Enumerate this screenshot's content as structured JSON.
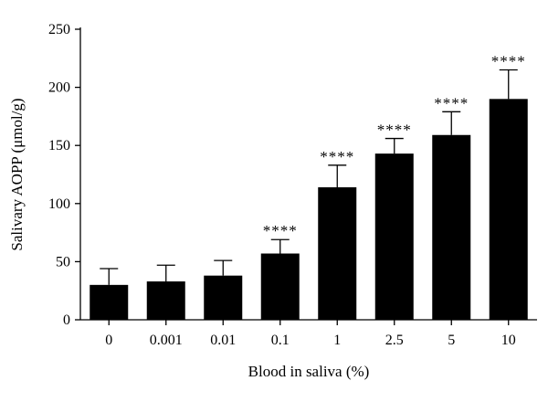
{
  "chart_data": {
    "type": "bar",
    "title": "",
    "xlabel": "Blood in saliva (%)",
    "ylabel": "Salivary AOPP (μmol/g)",
    "categories": [
      "0",
      "0.001",
      "0.01",
      "0.1",
      "1",
      "2.5",
      "5",
      "10"
    ],
    "values": [
      30,
      33,
      38,
      57,
      114,
      143,
      159,
      190
    ],
    "error_upper": [
      14,
      14,
      13,
      12,
      19,
      13,
      20,
      25
    ],
    "significance": [
      "",
      "",
      "",
      "****",
      "****",
      "****",
      "****",
      "****"
    ],
    "ylim": [
      0,
      250
    ],
    "yticks": [
      0,
      50,
      100,
      150,
      200,
      250
    ],
    "grid": false,
    "legend": "none",
    "bar_color": "#000000"
  }
}
